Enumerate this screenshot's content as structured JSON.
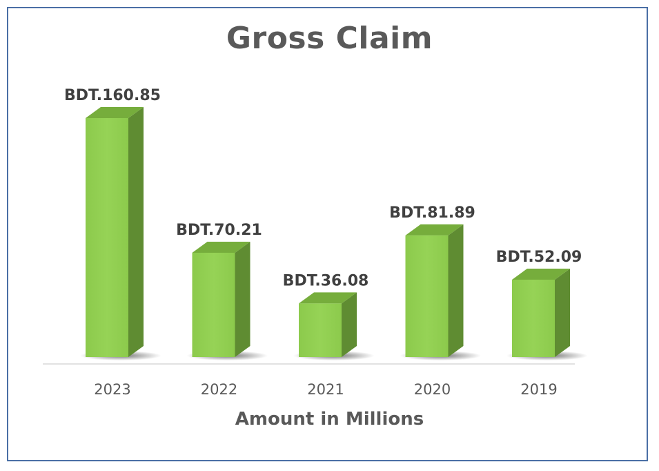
{
  "chart_data": {
    "type": "bar",
    "title": "Gross Claim",
    "xlabel": "Amount in Millions",
    "ylabel": "",
    "categories": [
      "2023",
      "2022",
      "2021",
      "2020",
      "2019"
    ],
    "values": [
      160.85,
      70.21,
      36.08,
      81.89,
      52.09
    ],
    "data_labels": [
      "BDT.160.85",
      "BDT.70.21",
      "BDT.36.08",
      "BDT.81.89",
      "BDT.52.09"
    ],
    "ylim": [
      0,
      160.85
    ],
    "grid": false,
    "legend": "none",
    "style": "3d-column"
  },
  "colors": {
    "bar_front": "#92d050",
    "bar_side": "#5f8c32",
    "bar_top": "#76ad3c",
    "border": "#4a6fa5",
    "text": "#595959"
  }
}
